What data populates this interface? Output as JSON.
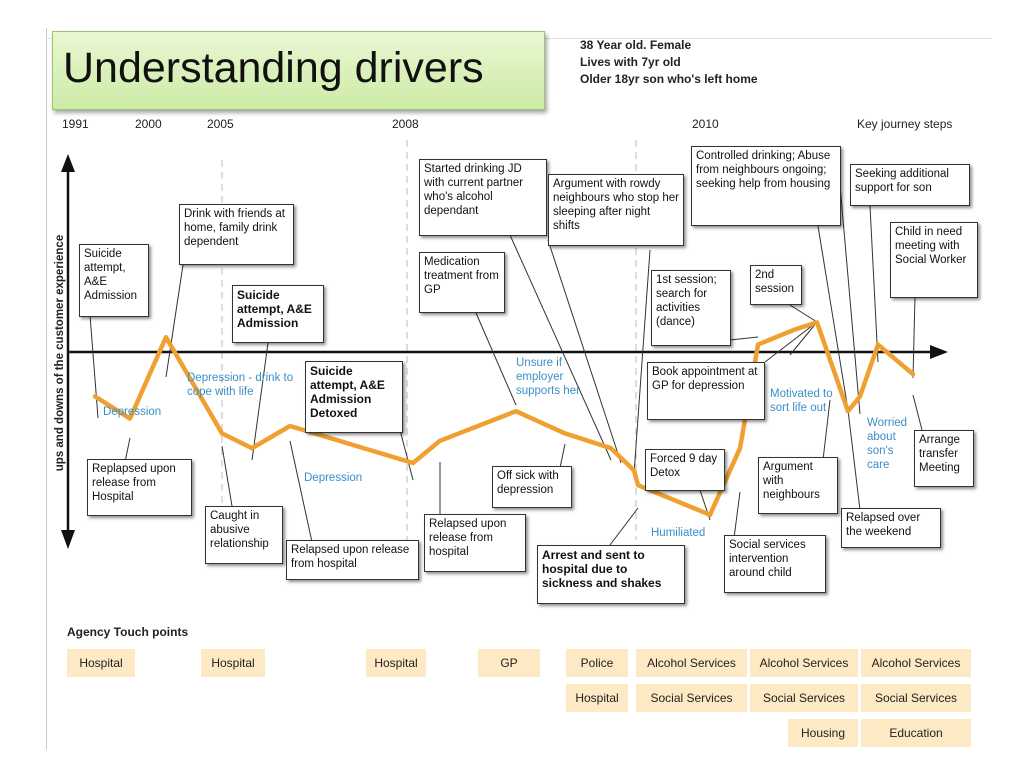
{
  "title": "Understanding drivers",
  "persona": [
    "38 Year old. Female",
    "Lives with 7yr old",
    "Older 18yr son who's left home"
  ],
  "years": [
    "1991",
    "2000",
    "2005",
    "2008",
    "2010"
  ],
  "key_steps_label": "Key journey steps",
  "y_axis_label": "ups and downs of the customer experience",
  "chart_data": {
    "type": "line",
    "series": [
      {
        "values": [
          -6,
          -9,
          2,
          -11,
          -13,
          -10,
          -15,
          -12,
          -8,
          -11,
          -13,
          -16,
          -18,
          -22,
          -13,
          1,
          3,
          4,
          -8,
          -6,
          1,
          -3
        ]
      }
    ],
    "xlim": [
      0,
      21
    ],
    "ylim": [
      -25,
      25
    ],
    "colors": {
      "line": "#f0a030",
      "axis": "#111111",
      "dashes": "#bbbbbb"
    }
  },
  "annotations": [
    "Suicide attempt, A&E Admission",
    "Drink with friends at home, family drink dependent",
    "Suicide attempt, A&E Admission",
    "Replapsed upon release from Hospital",
    "Caught in abusive relationship",
    "Relapsed upon release from hospital",
    "Suicide attempt, A&E Admission Detoxed",
    "Started drinking JD with current partner who's alcohol dependant",
    "Medication treatment from GP",
    "Relapsed upon release from hospital",
    "Off sick with depression",
    "Argument with rowdy neighbours who stop her sleeping after night shifts",
    "Arrest and sent to hospital due to sickness and shakes",
    "Forced 9 day Detox",
    "1st session; search for activities (dance)",
    "2nd session",
    "Controlled drinking; Abuse from neighbours ongoing; seeking help from housing",
    "Book appointment at GP for depression",
    "Social services intervention around child",
    "Argument with neighbours",
    "Seeking additional support for son",
    "Child in need meeting with Social Worker",
    "Relapsed over the weekend",
    "Arrange transfer Meeting"
  ],
  "emotions": [
    "Depression",
    "Depression - drink to cope with life",
    "Depression",
    "Unsure if employer supports her",
    "Humiliated",
    "Motivated to sort life out",
    "Worried about son's care"
  ],
  "agency": {
    "title": "Agency Touch points",
    "row1": [
      "Hospital",
      "Hospital",
      "Hospital",
      "GP",
      "Police",
      "Alcohol Services",
      "Alcohol Services",
      "Alcohol Services"
    ],
    "row2": [
      "Hospital",
      "Social Services",
      "Social Services",
      "Social Services"
    ],
    "row3": [
      "Housing",
      "Education"
    ]
  }
}
